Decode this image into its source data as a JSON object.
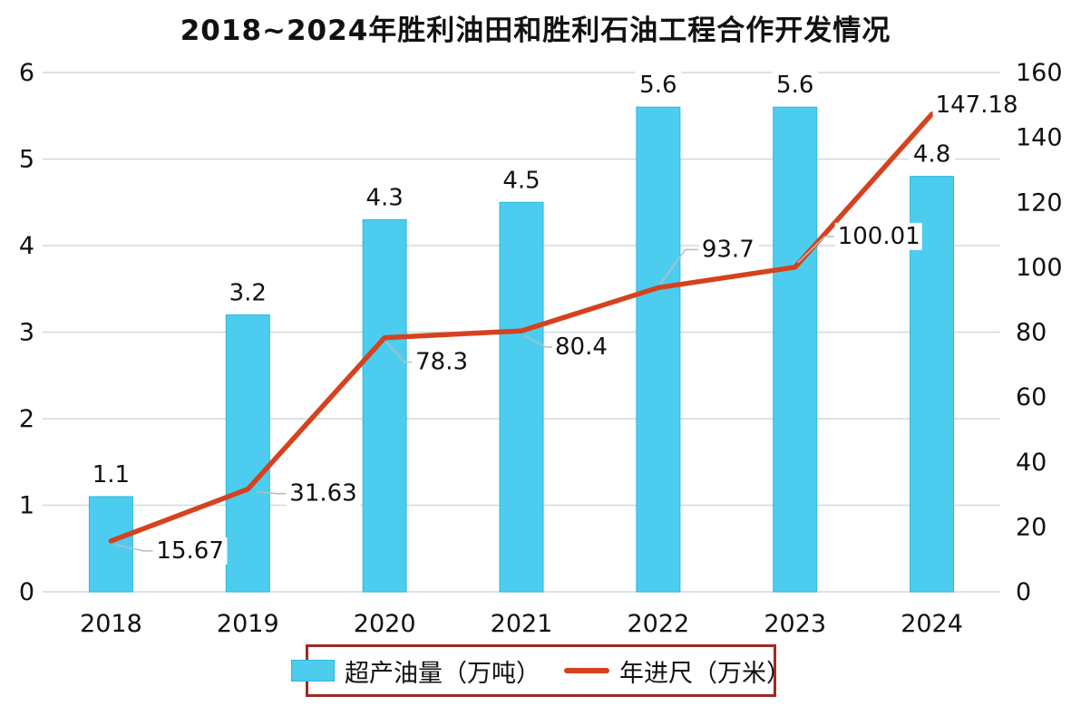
{
  "title": "2018~2024年胜利油田和胜利石油工程合作开发情况",
  "chart_data": {
    "type": "combo",
    "categories": [
      "2018",
      "2019",
      "2020",
      "2021",
      "2022",
      "2023",
      "2024"
    ],
    "series": [
      {
        "name": "超产油量（万吨）",
        "type": "bar",
        "axis": "left",
        "color": "#4ccdf0",
        "values": [
          1.1,
          3.2,
          4.3,
          4.5,
          5.6,
          5.6,
          4.8
        ],
        "data_labels": [
          "1.1",
          "3.2",
          "4.3",
          "4.5",
          "5.6",
          "5.6",
          "4.8"
        ]
      },
      {
        "name": "年进尺（万米）",
        "type": "line",
        "axis": "right",
        "color": "#d5421d",
        "values": [
          15.67,
          31.63,
          78.3,
          80.4,
          93.7,
          100.01,
          147.18
        ],
        "data_labels": [
          "15.67",
          "31.63",
          "78.3",
          "80.4",
          "93.7",
          "100.01",
          "147.18"
        ]
      }
    ],
    "title": "2018~2024年胜利油田和胜利石油工程合作开发情况",
    "left_axis": {
      "min": 0,
      "max": 6,
      "ticks": [
        0,
        1,
        2,
        3,
        4,
        5,
        6
      ]
    },
    "right_axis": {
      "min": 0,
      "max": 160,
      "ticks": [
        0,
        20,
        40,
        60,
        80,
        100,
        120,
        140,
        160
      ]
    },
    "grid": true,
    "legend_position": "bottom"
  },
  "legend": {
    "items": [
      {
        "label": "超产油量（万吨）",
        "swatch": "bar-swatch"
      },
      {
        "label": "年进尺（万米）",
        "swatch": "line-swatch"
      }
    ]
  },
  "colors": {
    "bar": "#4ccdf0",
    "bar_border": "#2fb6dd",
    "line": "#d5421d",
    "grid": "#cfdadc",
    "leader": "#b5bfc2",
    "legend_border": "#9e2a25",
    "text": "#111111",
    "background": "#ffffff"
  }
}
